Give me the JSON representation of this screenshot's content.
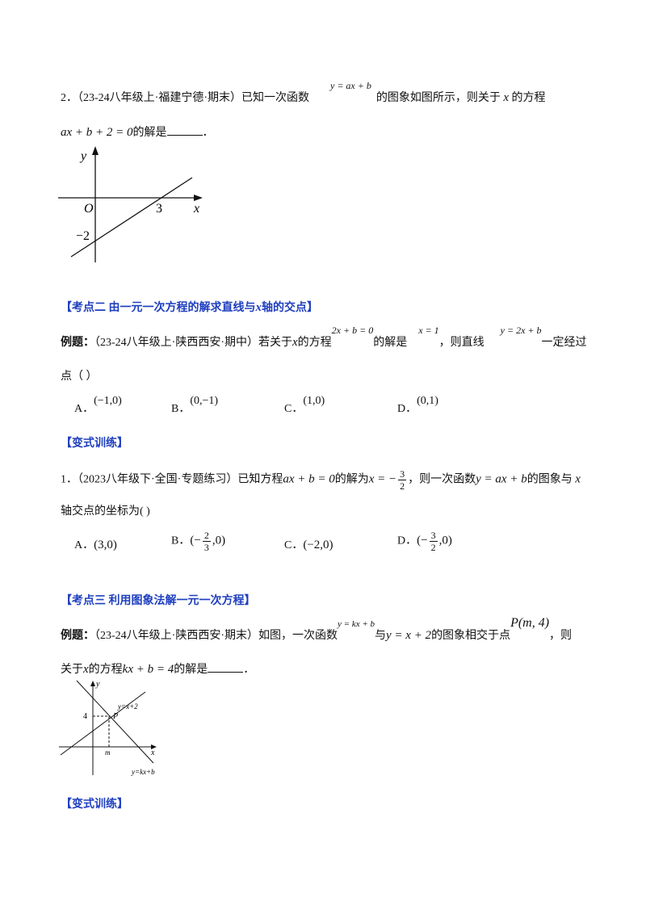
{
  "problem2": {
    "number": "2．",
    "source": "（23-24八年级上·福建宁德·期末）",
    "text1": "已知一次函数",
    "formula1": "y = ax + b",
    "text2": "的图象如图所示，则关于",
    "var": "x",
    "text3": "的方程",
    "formula2": "ax + b + 2 = 0",
    "text4": "的解是",
    "end": "．",
    "figure": {
      "y_label": "y",
      "x_label": "x",
      "origin": "O",
      "x_intercept": "3",
      "y_intercept": "−2"
    }
  },
  "section2": {
    "heading_pre": "【考点二  由一元一次方程的解求直线与",
    "heading_var": "x",
    "heading_post": "轴的交点】",
    "example": {
      "label": "例题：",
      "source": "（23-24八年级上·陕西西安·期中）",
      "text1": "若关于",
      "var": "x",
      "text2": "的方程",
      "formula1": "2x + b = 0",
      "text3": "的解是",
      "formula2": "x = 1",
      "text4": "，则直线",
      "formula3": "y = 2x + b",
      "text5": "一定经过",
      "text6": "点（    ）",
      "options": [
        {
          "letter": "A．",
          "value": "(−1,0)"
        },
        {
          "letter": "B．",
          "value": "(0,−1)"
        },
        {
          "letter": "C．",
          "value": "(1,0)"
        },
        {
          "letter": "D．",
          "value": "(0,1)"
        }
      ]
    },
    "practice": {
      "heading": "【变式训练】",
      "number": "1．",
      "source": "（2023八年级下·全国·专题练习）",
      "text1": "已知方程",
      "formula1": "ax + b = 0",
      "text2": "的解为",
      "formula2": {
        "pre": "x = −",
        "num": "3",
        "den": "2"
      },
      "text3": "，则一次函数",
      "formula3": "y = ax + b",
      "text4": "的图象与",
      "var": "x",
      "text5": "轴交点的坐标为(    )",
      "options": [
        {
          "letter": "A．",
          "pre": "(3,0)"
        },
        {
          "letter": "B．",
          "pre": "(−",
          "num": "2",
          "den": "3",
          "post": ",0)"
        },
        {
          "letter": "C．",
          "pre": "(−2,0)"
        },
        {
          "letter": "D．",
          "pre": "(−",
          "num": "3",
          "den": "2",
          "post": ",0)"
        }
      ]
    }
  },
  "section3": {
    "heading": "【考点三  利用图象法解一元一次方程】",
    "example": {
      "label": "例题：",
      "source": "（23-24八年级上·陕西西安·期末）",
      "text1": "如图，一次函数",
      "formula1": "y = kx + b",
      "text2": "与",
      "formula2": "y = x + 2",
      "text3": "的图象相交于点",
      "formula3": "P(m, 4)",
      "text4": "，则",
      "text5": "关于",
      "var": "x",
      "text6": "的方程",
      "formula4": "kx + b = 4",
      "text7": "的解是",
      "end": "．",
      "figure": {
        "y_label": "y",
        "x_label": "x",
        "line1": "y=x+2",
        "line2": "y=kx+b",
        "point": "P",
        "y_value": "4",
        "x_value": "m"
      }
    },
    "practice_heading": "【变式训练】"
  }
}
